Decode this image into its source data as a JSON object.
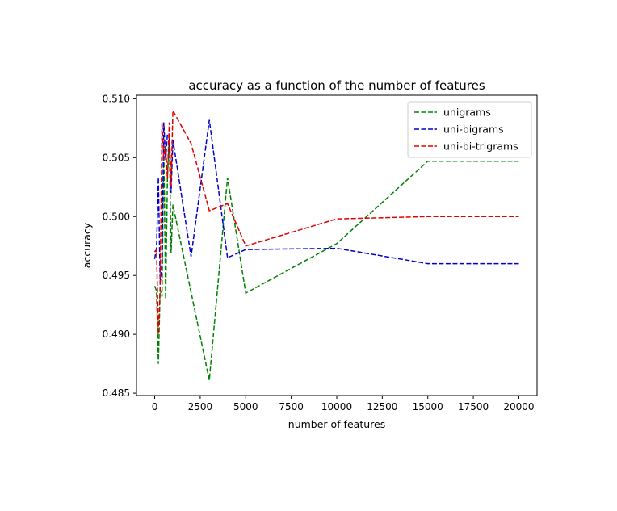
{
  "chart_data": {
    "type": "line",
    "title": "accuracy as a function of the number of features",
    "xlabel": "number of features",
    "ylabel": "accuracy",
    "xlim": [
      -1000,
      21000
    ],
    "ylim": [
      0.4848,
      0.5103
    ],
    "xticks": [
      0,
      2500,
      5000,
      7500,
      10000,
      12500,
      15000,
      17500,
      20000
    ],
    "xtick_labels": [
      "0",
      "2500",
      "5000",
      "7500",
      "10000",
      "12500",
      "15000",
      "17500",
      "20000"
    ],
    "yticks": [
      0.485,
      0.49,
      0.495,
      0.5,
      0.505,
      0.51
    ],
    "ytick_labels": [
      "0.485",
      "0.490",
      "0.495",
      "0.500",
      "0.505",
      "0.510"
    ],
    "grid": false,
    "legend_position": "top-right",
    "series": [
      {
        "name": "unigrams",
        "color": "#008000",
        "style": "dashed",
        "points": [
          [
            0,
            0.4941
          ],
          [
            100,
            0.4937
          ],
          [
            200,
            0.4875
          ],
          [
            300,
            0.4938
          ],
          [
            400,
            0.4932
          ],
          [
            500,
            0.5061
          ],
          [
            600,
            0.493
          ],
          [
            700,
            0.5032
          ],
          [
            800,
            0.5068
          ],
          [
            900,
            0.4969
          ],
          [
            1000,
            0.501
          ],
          [
            3000,
            0.4861
          ],
          [
            4000,
            0.5033
          ],
          [
            5000,
            0.4935
          ],
          [
            10000,
            0.4977
          ],
          [
            15000,
            0.5047
          ],
          [
            20000,
            0.5047
          ]
        ]
      },
      {
        "name": "uni-bigrams",
        "color": "#0000cc",
        "style": "dashed",
        "points": [
          [
            0,
            0.4964
          ],
          [
            100,
            0.4973
          ],
          [
            200,
            0.5033
          ],
          [
            300,
            0.4944
          ],
          [
            400,
            0.496
          ],
          [
            500,
            0.508
          ],
          [
            600,
            0.5048
          ],
          [
            700,
            0.507
          ],
          [
            800,
            0.5068
          ],
          [
            900,
            0.502
          ],
          [
            1000,
            0.5065
          ],
          [
            2000,
            0.4966
          ],
          [
            3000,
            0.5082
          ],
          [
            4000,
            0.4965
          ],
          [
            5000,
            0.4972
          ],
          [
            10000,
            0.4973
          ],
          [
            15000,
            0.496
          ],
          [
            20000,
            0.496
          ]
        ]
      },
      {
        "name": "uni-bi-trigrams",
        "color": "#e00000",
        "style": "dashed",
        "points": [
          [
            0,
            0.497
          ],
          [
            100,
            0.4972
          ],
          [
            200,
            0.49
          ],
          [
            300,
            0.494
          ],
          [
            400,
            0.508
          ],
          [
            500,
            0.5048
          ],
          [
            600,
            0.506
          ],
          [
            700,
            0.5032
          ],
          [
            800,
            0.508
          ],
          [
            900,
            0.5025
          ],
          [
            1000,
            0.509
          ],
          [
            2000,
            0.5062
          ],
          [
            3000,
            0.5005
          ],
          [
            4000,
            0.5011
          ],
          [
            5000,
            0.4975
          ],
          [
            10000,
            0.4998
          ],
          [
            15000,
            0.5
          ],
          [
            20000,
            0.5
          ]
        ]
      }
    ]
  }
}
